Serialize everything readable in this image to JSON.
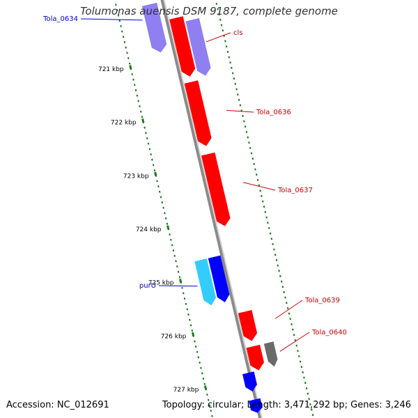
{
  "title": "Tolumonas auensis DSM 9187, complete genome",
  "accession": "Accession: NC_012691",
  "summary": "Topology: circular; Length: 3,471,292 bp; Genes: 3,246",
  "colors": {
    "backbone": "#8a8a8a",
    "tick": "#1a7a1a",
    "red_gene": "#ff0000",
    "blue_gene": "#0000ff",
    "cyan_gene": "#33ccff",
    "lavender_gene": "#7b68ee",
    "gray_gene": "#6a6a6a",
    "label_red": "#cc0000",
    "label_blue": "#0000cc"
  },
  "scale": {
    "unit": "kbp",
    "ticks": [
      {
        "kbp": 721,
        "label": "721 kbp"
      },
      {
        "kbp": 722,
        "label": "722 kbp"
      },
      {
        "kbp": 723,
        "label": "723 kbp"
      },
      {
        "kbp": 724,
        "label": "724 kbp"
      },
      {
        "kbp": 725,
        "label": "725 kbp"
      },
      {
        "kbp": 726,
        "label": "726 kbp"
      },
      {
        "kbp": 727,
        "label": "727 kbp"
      }
    ]
  },
  "features": [
    {
      "name": "Tola_0634",
      "strand": "forward",
      "color": "lavender",
      "start_kbp": 720.0,
      "end_kbp": 720.9,
      "label": "Tola_0634"
    },
    {
      "name": "cls_lavender",
      "strand": "reverse",
      "color": "lavender",
      "start_kbp": 720.45,
      "end_kbp": 721.5,
      "label": ""
    },
    {
      "name": "cls",
      "strand": "forward",
      "color": "red",
      "start_kbp": 720.35,
      "end_kbp": 721.45,
      "label": "cls"
    },
    {
      "name": "Tola_0636",
      "strand": "forward",
      "color": "red",
      "start_kbp": 721.55,
      "end_kbp": 722.75,
      "label": "Tola_0636"
    },
    {
      "name": "Tola_0637",
      "strand": "forward",
      "color": "red",
      "start_kbp": 722.9,
      "end_kbp": 724.25,
      "label": "Tola_0637"
    },
    {
      "name": "purU_cyan",
      "strand": "reverse",
      "color": "cyan",
      "start_kbp": 724.75,
      "end_kbp": 725.6,
      "label": ""
    },
    {
      "name": "purU",
      "strand": "reverse",
      "color": "blue",
      "start_kbp": 724.75,
      "end_kbp": 725.6,
      "label": "purU"
    },
    {
      "name": "Tola_0639",
      "strand": "forward",
      "color": "red",
      "start_kbp": 725.85,
      "end_kbp": 726.4,
      "label": "Tola_0639"
    },
    {
      "name": "Tola_0640",
      "strand": "forward",
      "color": "red",
      "start_kbp": 726.5,
      "end_kbp": 726.95,
      "label": "Tola_0640"
    },
    {
      "name": "gray_gene",
      "strand": "reverse",
      "color": "gray",
      "start_kbp": 726.5,
      "end_kbp": 726.95,
      "label": ""
    },
    {
      "name": "blue_lower",
      "strand": "reverse",
      "color": "blue",
      "start_kbp": 726.95,
      "end_kbp": 727.3,
      "label": ""
    },
    {
      "name": "blue_bottom",
      "strand": "reverse",
      "color": "blue",
      "start_kbp": 727.45,
      "end_kbp": 727.7,
      "label": ""
    }
  ]
}
